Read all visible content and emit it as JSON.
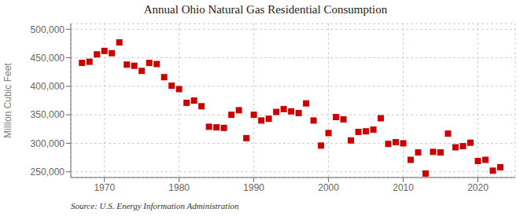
{
  "chart_data": {
    "type": "scatter",
    "title": "Annual Ohio Natural Gas Residential Consumption",
    "ylabel": "Million Cubic Feet",
    "annotation": "Source: U.S. Energy Information Administration",
    "color": "#cc0000",
    "marker": "square",
    "grid": true,
    "x": [
      1967,
      1968,
      1969,
      1970,
      1971,
      1972,
      1973,
      1974,
      1975,
      1976,
      1977,
      1978,
      1979,
      1980,
      1981,
      1982,
      1983,
      1984,
      1985,
      1986,
      1987,
      1988,
      1989,
      1990,
      1991,
      1992,
      1993,
      1994,
      1995,
      1996,
      1997,
      1998,
      1999,
      2000,
      2001,
      2002,
      2003,
      2004,
      2005,
      2006,
      2007,
      2008,
      2009,
      2010,
      2011,
      2012,
      2013,
      2014,
      2015,
      2016,
      2017,
      2018,
      2019,
      2020,
      2021,
      2022,
      2023
    ],
    "values": [
      441000,
      443000,
      456000,
      462000,
      458000,
      477000,
      438000,
      436000,
      427000,
      441000,
      439000,
      416000,
      401000,
      395000,
      371000,
      375000,
      365000,
      329000,
      328000,
      327000,
      350000,
      358000,
      309000,
      350000,
      340000,
      343000,
      355000,
      360000,
      356000,
      353000,
      370000,
      340000,
      296000,
      318000,
      346000,
      342000,
      305000,
      320000,
      321000,
      324000,
      344000,
      299000,
      302000,
      300000,
      271000,
      284000,
      247000,
      285000,
      284000,
      317000,
      293000,
      295000,
      301000,
      269000,
      271000,
      252000,
      258000
    ],
    "xlim": [
      1965.5,
      2025
    ],
    "xticks": [
      1970,
      1980,
      1990,
      2000,
      2010,
      2020
    ],
    "ylim": [
      240000,
      510000
    ],
    "yticks": [
      {
        "value": 250000,
        "label": "250,000"
      },
      {
        "value": 300000,
        "label": "300,000"
      },
      {
        "value": 350000,
        "label": "350,000"
      },
      {
        "value": 400000,
        "label": "400,000"
      },
      {
        "value": 450000,
        "label": "450,000"
      },
      {
        "value": 500000,
        "label": "500,000"
      }
    ]
  }
}
